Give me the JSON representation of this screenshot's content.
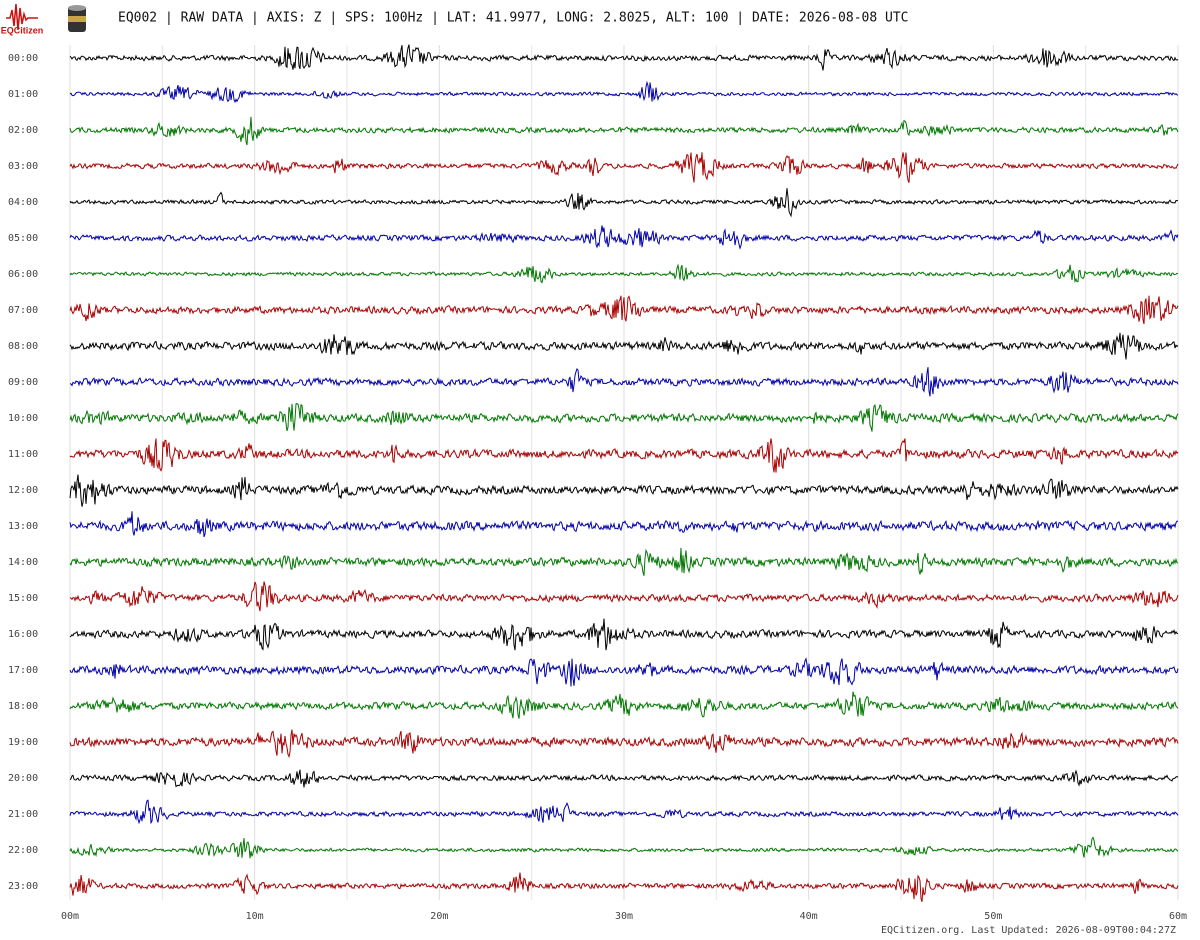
{
  "chart_data": {
    "type": "helicorder",
    "brand": "EQCitizen",
    "title": "EQ002 | RAW DATA | AXIS: Z | SPS: 100Hz | LAT: 41.9977, LONG: 2.8025, ALT: 100 | DATE: 2026-08-08 UTC",
    "footer": "EQCitizen.org. Last Updated: 2026-08-09T00:04:27Z",
    "categories": [
      "00:00",
      "01:00",
      "02:00",
      "03:00",
      "04:00",
      "05:00",
      "06:00",
      "07:00",
      "08:00",
      "09:00",
      "10:00",
      "11:00",
      "12:00",
      "13:00",
      "14:00",
      "15:00",
      "16:00",
      "17:00",
      "18:00",
      "19:00",
      "20:00",
      "21:00",
      "22:00",
      "23:00"
    ],
    "colors": [
      "#000000",
      "#0000aa",
      "#007700",
      "#aa0000"
    ],
    "xlim": [
      0,
      60
    ],
    "xticks": [
      {
        "value": 0,
        "label": "00m"
      },
      {
        "value": 10,
        "label": "10m"
      },
      {
        "value": 20,
        "label": "20m"
      },
      {
        "value": 30,
        "label": "30m"
      },
      {
        "value": 40,
        "label": "40m"
      },
      {
        "value": 50,
        "label": "50m"
      },
      {
        "value": 60,
        "label": "60m"
      }
    ],
    "grid": true
  }
}
